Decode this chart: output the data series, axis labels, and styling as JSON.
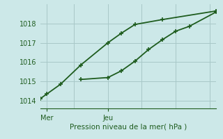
{
  "xlabel": "Pression niveau de la mer( hPa )",
  "bg_color": "#cce8e8",
  "line_color": "#1e5c1e",
  "grid_color": "#a8c8c8",
  "axis_color": "#1e5c1e",
  "text_color": "#1e5c1e",
  "ylim": [
    1013.6,
    1019.0
  ],
  "xlim": [
    0,
    13
  ],
  "yticks": [
    1014,
    1015,
    1016,
    1017,
    1018
  ],
  "xtick_positions": [
    0.5,
    5.0
  ],
  "xtick_labels": [
    "Mer",
    "Jeu"
  ],
  "vline_positions": [
    0.5,
    5.0
  ],
  "series1_x": [
    0,
    0.5,
    1.5,
    3.0,
    5.0,
    6.0,
    7.0,
    9.0,
    13.0
  ],
  "series1_y": [
    1014.1,
    1014.35,
    1014.85,
    1015.85,
    1017.0,
    1017.5,
    1017.95,
    1018.2,
    1018.65
  ],
  "series2_x": [
    3.0,
    5.0,
    6.0,
    7.0,
    8.0,
    9.0,
    10.0,
    11.0,
    13.0
  ],
  "series2_y": [
    1015.1,
    1015.2,
    1015.55,
    1016.05,
    1016.65,
    1017.15,
    1017.6,
    1017.85,
    1018.6
  ],
  "marker_size": 5,
  "line_width": 1.3
}
